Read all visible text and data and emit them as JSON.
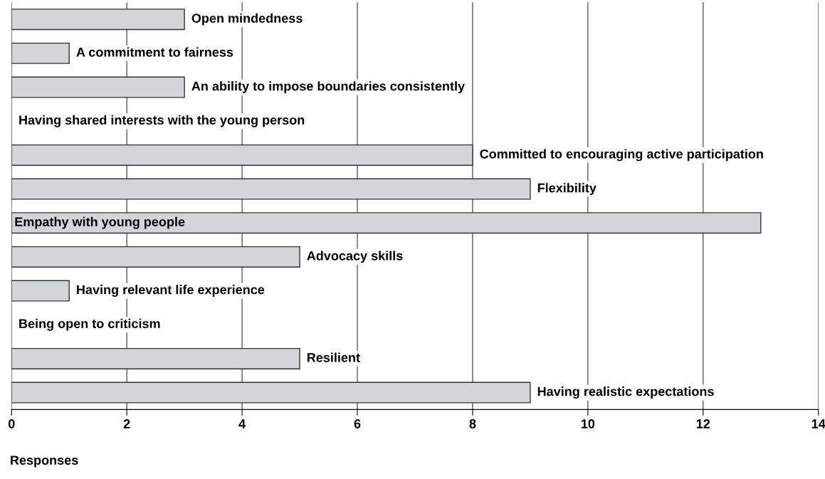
{
  "chart_data": {
    "type": "bar",
    "orientation": "horizontal",
    "xlabel": "Responses",
    "categories": [
      "Open mindedness",
      "A commitment to fairness",
      "An ability to impose boundaries consistently",
      "Having shared interests with the young person",
      "Committed to encouraging active participation",
      "Flexibility",
      "Empathy with young people",
      "Advocacy skills",
      "Having relevant life experience",
      "Being open to criticism",
      "Resilient",
      "Having realistic expectations"
    ],
    "values": [
      3,
      1,
      3,
      0,
      8,
      9,
      13,
      5,
      1,
      0,
      5,
      9
    ],
    "color": "#d4d5d7",
    "xlim": [
      0,
      14
    ],
    "xticks": [
      0,
      2,
      4,
      6,
      8,
      10,
      12,
      14
    ],
    "grid": "x",
    "tick_labels": "x"
  }
}
